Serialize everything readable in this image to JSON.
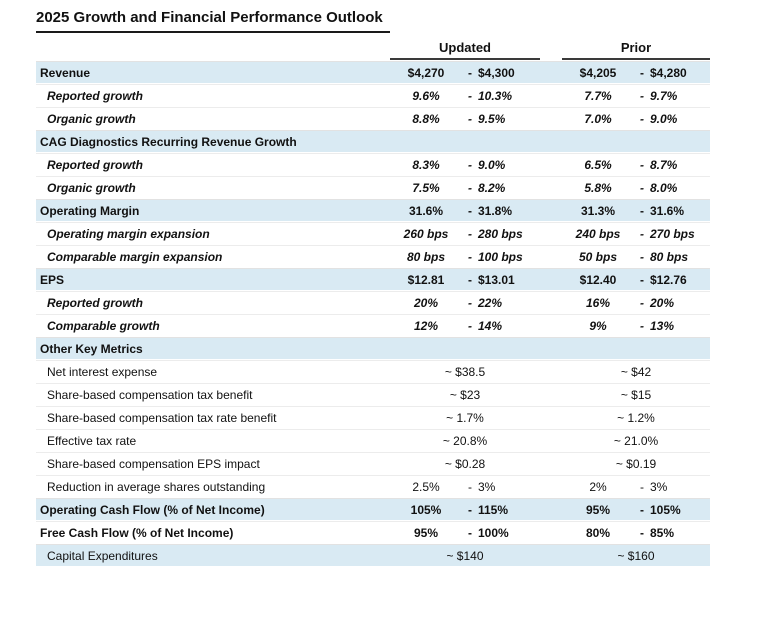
{
  "title": "2025 Growth and Financial Performance Outlook",
  "table": {
    "headers": {
      "updated": "Updated",
      "prior": "Prior"
    },
    "range_separator": "-",
    "shade_color": "#d9eaf3",
    "rows": [
      {
        "label": "Revenue",
        "style": "section",
        "shaded": true,
        "updated": {
          "lo": "$4,270",
          "hi": "$4,300"
        },
        "prior": {
          "lo": "$4,205",
          "hi": "$4,280"
        }
      },
      {
        "label": "Reported growth",
        "style": "italic",
        "shaded": false,
        "updated": {
          "lo": "9.6%",
          "hi": "10.3%"
        },
        "prior": {
          "lo": "7.7%",
          "hi": "9.7%"
        }
      },
      {
        "label": "Organic growth",
        "style": "italic",
        "shaded": false,
        "updated": {
          "lo": "8.8%",
          "hi": "9.5%"
        },
        "prior": {
          "lo": "7.0%",
          "hi": "9.0%"
        }
      },
      {
        "label": "CAG Diagnostics Recurring Revenue Growth",
        "style": "section",
        "shaded": true,
        "updated": null,
        "prior": null
      },
      {
        "label": "Reported growth",
        "style": "italic",
        "shaded": false,
        "updated": {
          "lo": "8.3%",
          "hi": "9.0%"
        },
        "prior": {
          "lo": "6.5%",
          "hi": "8.7%"
        }
      },
      {
        "label": "Organic growth",
        "style": "italic",
        "shaded": false,
        "updated": {
          "lo": "7.5%",
          "hi": "8.2%"
        },
        "prior": {
          "lo": "5.8%",
          "hi": "8.0%"
        }
      },
      {
        "label": "Operating Margin",
        "style": "section",
        "shaded": true,
        "updated": {
          "lo": "31.6%",
          "hi": "31.8%"
        },
        "prior": {
          "lo": "31.3%",
          "hi": "31.6%"
        }
      },
      {
        "label": "Operating margin expansion",
        "style": "italic",
        "shaded": false,
        "updated": {
          "lo": "260 bps",
          "hi": "280 bps"
        },
        "prior": {
          "lo": "240 bps",
          "hi": "270 bps"
        }
      },
      {
        "label": "Comparable margin expansion",
        "style": "italic",
        "shaded": false,
        "updated": {
          "lo": "80 bps",
          "hi": "100 bps"
        },
        "prior": {
          "lo": "50 bps",
          "hi": "80 bps"
        }
      },
      {
        "label": "EPS",
        "style": "section",
        "shaded": true,
        "updated": {
          "lo": "$12.81",
          "hi": "$13.01"
        },
        "prior": {
          "lo": "$12.40",
          "hi": "$12.76"
        }
      },
      {
        "label": "Reported growth",
        "style": "italic",
        "shaded": false,
        "updated": {
          "lo": "20%",
          "hi": "22%"
        },
        "prior": {
          "lo": "16%",
          "hi": "20%"
        }
      },
      {
        "label": "Comparable growth",
        "style": "italic",
        "shaded": false,
        "updated": {
          "lo": "12%",
          "hi": "14%"
        },
        "prior": {
          "lo": "9%",
          "hi": "13%"
        }
      },
      {
        "label": "Other Key Metrics",
        "style": "section",
        "shaded": true,
        "updated": null,
        "prior": null
      },
      {
        "label": "Net interest expense",
        "style": "plain",
        "shaded": false,
        "updated": {
          "value": "~ $38.5"
        },
        "prior": {
          "value": "~ $42"
        }
      },
      {
        "label": "Share-based compensation tax benefit",
        "style": "plain",
        "shaded": false,
        "updated": {
          "value": "~ $23"
        },
        "prior": {
          "value": "~ $15"
        }
      },
      {
        "label": "Share-based compensation tax rate benefit",
        "style": "plain",
        "shaded": false,
        "updated": {
          "value": "~ 1.7%"
        },
        "prior": {
          "value": "~ 1.2%"
        }
      },
      {
        "label": "Effective tax rate",
        "style": "plain",
        "shaded": false,
        "updated": {
          "value": "~ 20.8%"
        },
        "prior": {
          "value": "~ 21.0%"
        }
      },
      {
        "label": "Share-based compensation EPS impact",
        "style": "plain",
        "shaded": false,
        "updated": {
          "value": "~ $0.28"
        },
        "prior": {
          "value": "~ $0.19"
        }
      },
      {
        "label": "Reduction in average shares outstanding",
        "style": "plain",
        "shaded": false,
        "updated": {
          "lo": "2.5%",
          "hi": "3%"
        },
        "prior": {
          "lo": "2%",
          "hi": "3%"
        }
      },
      {
        "label": "Operating Cash Flow (% of Net Income)",
        "style": "section",
        "shaded": true,
        "updated": {
          "lo": "105%",
          "hi": "115%"
        },
        "prior": {
          "lo": "95%",
          "hi": "105%"
        }
      },
      {
        "label": "Free Cash Flow (% of Net Income)",
        "style": "section",
        "shaded": false,
        "updated": {
          "lo": "95%",
          "hi": "100%"
        },
        "prior": {
          "lo": "80%",
          "hi": "85%"
        }
      },
      {
        "label": "Capital Expenditures",
        "style": "plain",
        "shaded": true,
        "updated": {
          "value": "~ $140"
        },
        "prior": {
          "value": "~ $160"
        }
      }
    ]
  }
}
